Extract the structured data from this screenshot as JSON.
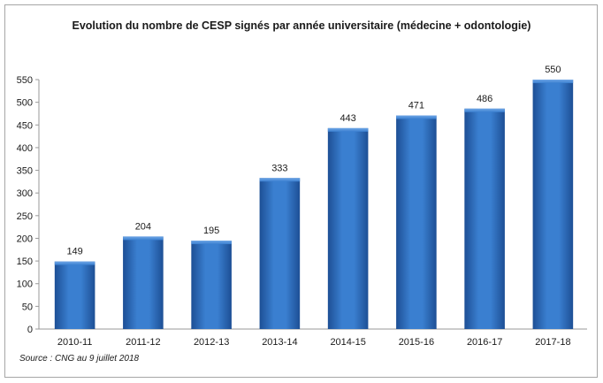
{
  "chart_data": {
    "type": "bar",
    "title": "Evolution du nombre de CESP signés par année universitaire (médecine + odontologie)",
    "categories": [
      "2010-11",
      "2011-12",
      "2012-13",
      "2013-14",
      "2014-15",
      "2015-16",
      "2016-17",
      "2017-18"
    ],
    "values": [
      149,
      204,
      195,
      333,
      443,
      471,
      486,
      550
    ],
    "data_labels": [
      "149",
      "204",
      "195",
      "333",
      "443",
      "471",
      "486",
      "550"
    ],
    "ylim": [
      0,
      550
    ],
    "yticks": [
      0,
      50,
      100,
      150,
      200,
      250,
      300,
      350,
      400,
      450,
      500,
      550
    ],
    "xlabel": "",
    "ylabel": "",
    "grid": false,
    "legend": "none",
    "bar_color": "#2f6fc0"
  },
  "source": "Source : CNG au 9 juillet 2018"
}
